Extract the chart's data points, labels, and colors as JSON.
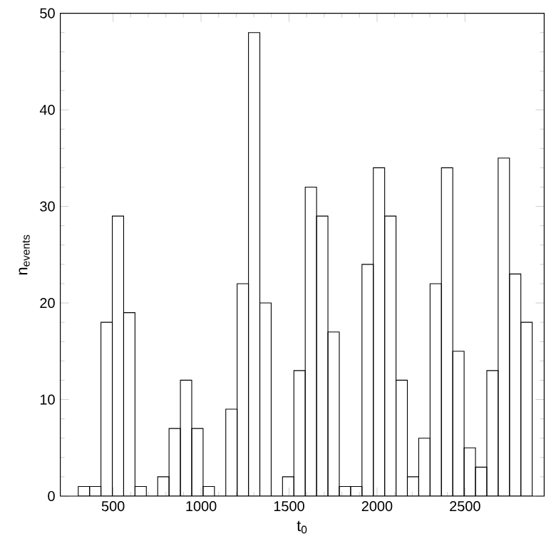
{
  "chart_data": {
    "type": "histogram",
    "xlabel": "t$_{0}$",
    "ylabel": "n$_{events}$",
    "bins": [
      302,
      366.5,
      431,
      495.5,
      560,
      624.5,
      689,
      753.5,
      818,
      882.5,
      947,
      1011.5,
      1076,
      1140.5,
      1205,
      1269.5,
      1334,
      1398.5,
      1463,
      1527.5,
      1592,
      1656.5,
      1721,
      1785.5,
      1850,
      1914.5,
      1979,
      2043.5,
      2108,
      2172.5,
      2237,
      2301.5,
      2366,
      2430.5,
      2495,
      2559.5,
      2624,
      2688.5,
      2753,
      2817.5,
      2882
    ],
    "values": [
      1,
      1,
      18,
      29,
      19,
      1,
      0,
      2,
      7,
      12,
      7,
      1,
      0,
      9,
      22,
      48,
      20,
      0,
      2,
      13,
      32,
      29,
      17,
      1,
      1,
      24,
      34,
      29,
      12,
      2,
      6,
      22,
      34,
      15,
      5,
      3,
      13,
      35,
      23,
      18
    ],
    "color": "#000000",
    "xlim": [
      200,
      2950
    ],
    "ylim": [
      0,
      50
    ],
    "xticks": [
      500,
      1000,
      1500,
      2000,
      2500
    ],
    "yticks": [
      0,
      10,
      20,
      30,
      40,
      50
    ],
    "grid": false
  }
}
